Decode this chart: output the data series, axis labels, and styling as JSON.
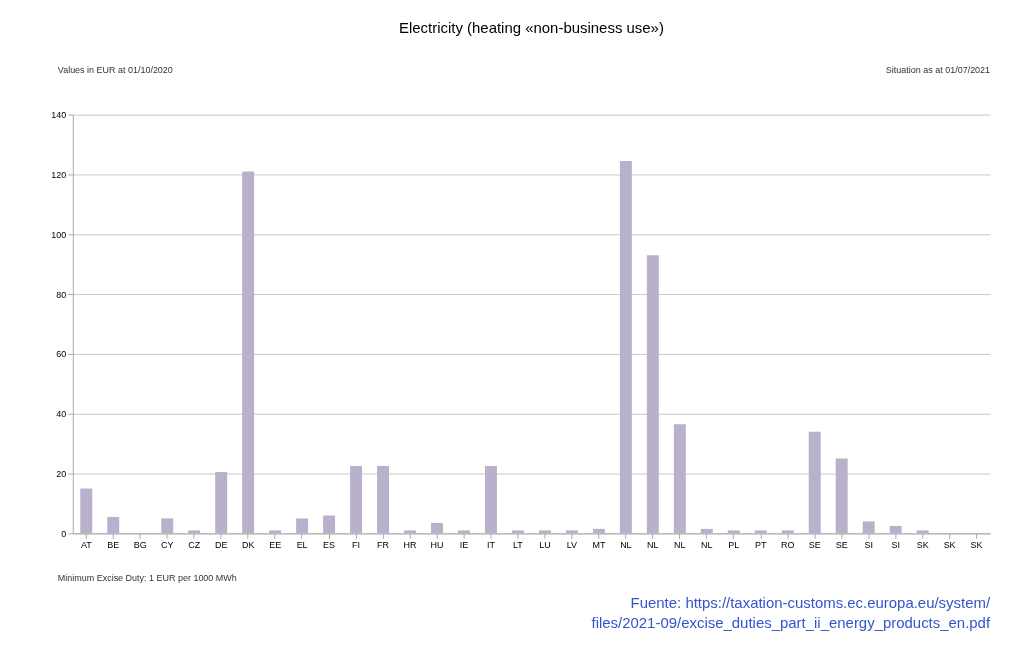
{
  "chart_data": {
    "type": "bar",
    "title": "Electricity (heating «non-business use»)",
    "categories": [
      "AT",
      "BE",
      "BG",
      "CY",
      "CZ",
      "DE",
      "DK",
      "EE",
      "EL",
      "ES",
      "FI",
      "FR",
      "HR",
      "HU",
      "IE",
      "IT",
      "LT",
      "LU",
      "LV",
      "MT",
      "NL",
      "NL",
      "NL",
      "NL",
      "PL",
      "PT",
      "RO",
      "SE",
      "SE",
      "SI",
      "SI",
      "SK",
      "SK",
      "SK"
    ],
    "values": [
      15,
      5.5,
      0,
      5,
      1,
      20.5,
      121,
      1,
      5,
      6,
      22.5,
      22.5,
      1,
      3.5,
      1,
      22.5,
      1,
      1,
      1,
      1.5,
      124.5,
      93,
      36.5,
      1.5,
      1,
      1,
      1,
      34,
      25,
      4,
      2.5,
      1,
      0,
      0
    ],
    "color": "#b9b0cc",
    "ylim": [
      0,
      140
    ],
    "yticks": [
      0,
      20,
      40,
      60,
      80,
      100,
      120,
      140
    ],
    "grid": "y",
    "annotations": [
      "Values in EUR at 01/10/2020",
      "Situation as at 01/07/2021",
      "Minimum Excise Duty: 1 EUR per 1000 MWh",
      "Fuente: https://taxation-customs.ec.europa.eu/system/files/2021-09/excise_duties_part_ii_energy_products_en.pdf"
    ]
  }
}
